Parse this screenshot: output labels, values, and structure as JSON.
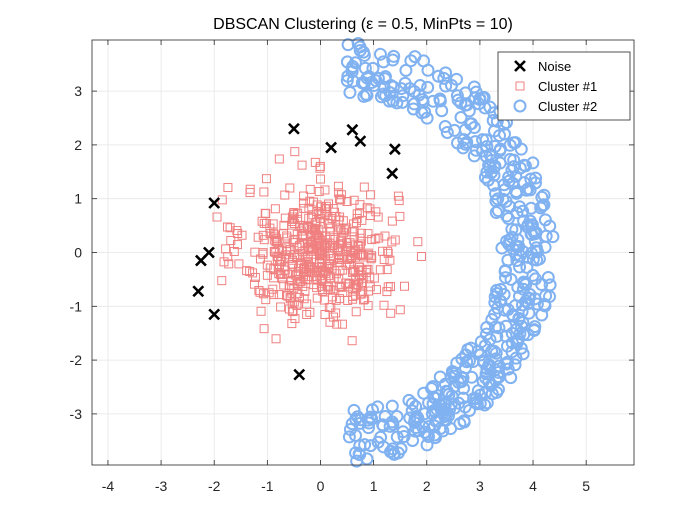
{
  "chart_data": {
    "type": "scatter",
    "title": "DBSCAN Clustering (ε = 0.5, MinPts = 10)",
    "xlabel": "",
    "ylabel": "",
    "xlim": [
      -4.3,
      5.9
    ],
    "ylim": [
      -3.95,
      3.95
    ],
    "xticks": [
      -4,
      -3,
      -2,
      -1,
      0,
      1,
      2,
      3,
      4,
      5
    ],
    "yticks": [
      -3,
      -2,
      -1,
      0,
      1,
      2,
      3
    ],
    "grid": true,
    "legend_position": "top-right",
    "series": [
      {
        "name": "Noise",
        "marker": "x",
        "color": "#000000",
        "points": [
          [
            -0.5,
            2.3
          ],
          [
            0.6,
            2.28
          ],
          [
            0.75,
            2.07
          ],
          [
            0.2,
            1.95
          ],
          [
            1.4,
            1.92
          ],
          [
            1.35,
            1.47
          ],
          [
            -2.0,
            0.92
          ],
          [
            -2.1,
            0.0
          ],
          [
            -2.25,
            -0.15
          ],
          [
            -2.3,
            -0.72
          ],
          [
            -2.0,
            -1.15
          ],
          [
            -0.4,
            -2.27
          ]
        ]
      },
      {
        "name": "Cluster #1",
        "marker": "square",
        "color": "#F08080",
        "generator": {
          "kind": "gaussian-blob",
          "count": 520,
          "center": [
            0.0,
            0.0
          ],
          "sd": [
            0.72,
            0.62
          ],
          "bounds": [
            [
              -2.0,
              2.1
            ],
            [
              -2.05,
              1.9
            ]
          ]
        }
      },
      {
        "name": "Cluster #2",
        "marker": "circle",
        "color": "#80B1F0",
        "generator": {
          "kind": "half-ring",
          "count": 480,
          "center": [
            0.5,
            0.0
          ],
          "radius": 3.4,
          "width": 0.5,
          "angle_range": [
            -1.57,
            1.57
          ]
        }
      }
    ]
  }
}
